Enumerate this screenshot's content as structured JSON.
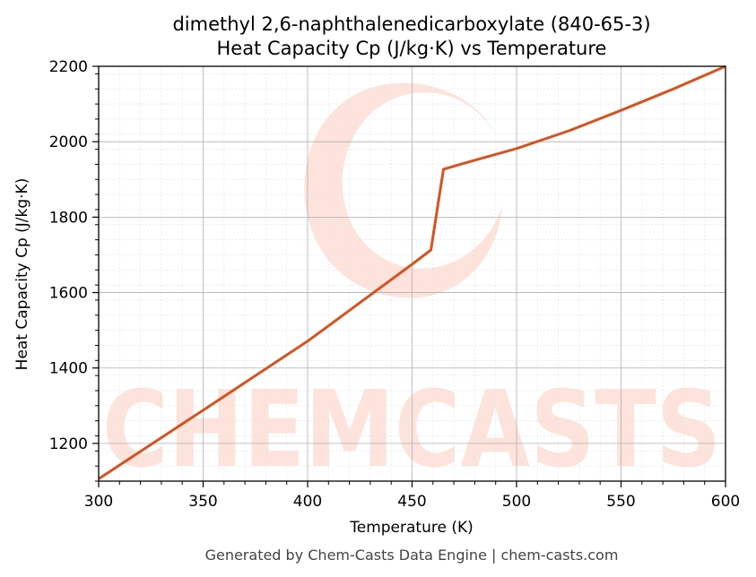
{
  "chart_data": {
    "type": "line",
    "title": "dimethyl 2,6-naphthalenedicarboxylate (840-65-3)",
    "subtitle": "Heat Capacity Cp (J/kg·K) vs Temperature",
    "xlabel": "Temperature (K)",
    "ylabel": "Heat Capacity Cp (J/kg·K)",
    "xlim": [
      300,
      600
    ],
    "ylim": [
      1100,
      2200
    ],
    "xticks": [
      300,
      350,
      400,
      450,
      500,
      550,
      600
    ],
    "yticks": [
      1200,
      1400,
      1600,
      1800,
      2000,
      2200
    ],
    "grid": true,
    "series": [
      {
        "x": [
          300,
          350,
          400,
          450,
          459,
          465,
          480,
          500,
          525,
          550,
          575,
          600
        ],
        "y": [
          1106,
          1288,
          1471,
          1675,
          1713,
          1927,
          1951,
          1982,
          2029,
          2083,
          2140,
          2200
        ]
      }
    ]
  },
  "colors": {
    "line": "#d4541f",
    "watermark": "#fde0d8"
  },
  "watermark": {
    "text": "CHEMCASTS"
  },
  "footer": "Generated by Chem-Casts Data Engine | chem-casts.com"
}
